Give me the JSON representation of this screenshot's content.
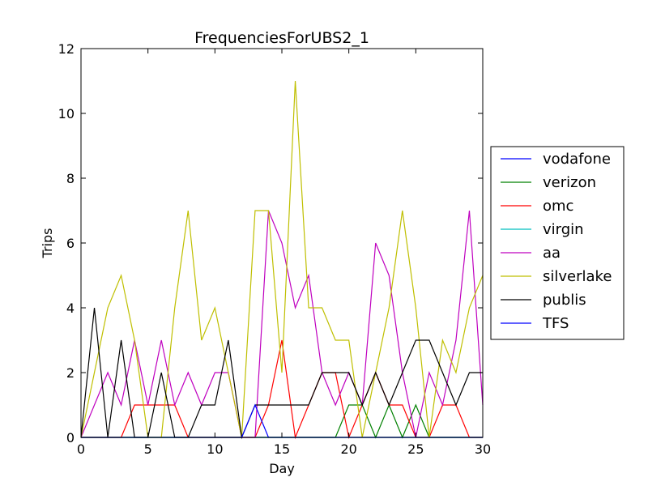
{
  "chart_data": {
    "type": "line",
    "title": "FrequenciesForUBS2_1",
    "xlabel": "Day",
    "ylabel": "Trips",
    "xlim": [
      0,
      30
    ],
    "ylim": [
      0,
      12
    ],
    "xticks": [
      0,
      5,
      10,
      15,
      20,
      25,
      30
    ],
    "yticks": [
      0,
      2,
      4,
      6,
      8,
      10,
      12
    ],
    "grid": false,
    "legend_position": "outside-right",
    "x": [
      0,
      1,
      2,
      3,
      4,
      5,
      6,
      7,
      8,
      9,
      10,
      11,
      12,
      13,
      14,
      15,
      16,
      17,
      18,
      19,
      20,
      21,
      22,
      23,
      24,
      25,
      26,
      27,
      28,
      29,
      30
    ],
    "series": [
      {
        "name": "vodafone",
        "color": "#0000ff",
        "values": [
          0,
          0,
          0,
          0,
          0,
          0,
          0,
          0,
          0,
          0,
          0,
          0,
          0,
          0,
          0,
          0,
          0,
          0,
          0,
          0,
          0,
          0,
          0,
          0,
          0,
          0,
          0,
          0,
          0,
          0,
          0
        ]
      },
      {
        "name": "verizon",
        "color": "#008000",
        "values": [
          0,
          0,
          0,
          0,
          0,
          0,
          0,
          0,
          0,
          0,
          0,
          0,
          0,
          0,
          0,
          0,
          0,
          0,
          0,
          0,
          1,
          1,
          0,
          1,
          0,
          1,
          0,
          0,
          0,
          0,
          0
        ]
      },
      {
        "name": "omc",
        "color": "#ff0000",
        "values": [
          0,
          0,
          0,
          0,
          1,
          1,
          1,
          1,
          0,
          0,
          0,
          0,
          0,
          0,
          1,
          3,
          0,
          1,
          2,
          2,
          0,
          1,
          2,
          1,
          1,
          0,
          0,
          1,
          1,
          0,
          0
        ]
      },
      {
        "name": "virgin",
        "color": "#00bfbf",
        "values": [
          0,
          0,
          0,
          0,
          0,
          0,
          0,
          0,
          0,
          0,
          0,
          0,
          0,
          0,
          0,
          0,
          0,
          0,
          0,
          0,
          0,
          0,
          0,
          0,
          0,
          0,
          0,
          0,
          0,
          0,
          0
        ]
      },
      {
        "name": "aa",
        "color": "#bf00bf",
        "values": [
          0,
          1,
          2,
          1,
          3,
          1,
          3,
          1,
          2,
          1,
          2,
          2,
          0,
          0,
          7,
          6,
          4,
          5,
          2,
          1,
          2,
          1,
          6,
          5,
          2,
          0,
          2,
          1,
          3,
          7,
          1
        ]
      },
      {
        "name": "silverlake",
        "color": "#bfbf00",
        "values": [
          0,
          2,
          4,
          5,
          3,
          0,
          0,
          4,
          7,
          3,
          4,
          2,
          0,
          7,
          7,
          2,
          11,
          4,
          4,
          3,
          3,
          0,
          2,
          4,
          7,
          4,
          0,
          3,
          2,
          4,
          5
        ]
      },
      {
        "name": "publis",
        "color": "#000000",
        "values": [
          0,
          4,
          0,
          3,
          0,
          0,
          2,
          0,
          0,
          1,
          1,
          3,
          0,
          1,
          1,
          1,
          1,
          1,
          2,
          2,
          2,
          1,
          2,
          1,
          2,
          3,
          3,
          2,
          1,
          2,
          2
        ]
      },
      {
        "name": "TFS",
        "color": "#0000ff",
        "values": [
          0,
          0,
          0,
          0,
          0,
          0,
          0,
          0,
          0,
          0,
          0,
          0,
          0,
          1,
          0,
          0,
          0,
          0,
          0,
          0,
          0,
          0,
          0,
          0,
          0,
          0,
          0,
          0,
          0,
          0,
          0
        ]
      }
    ]
  }
}
